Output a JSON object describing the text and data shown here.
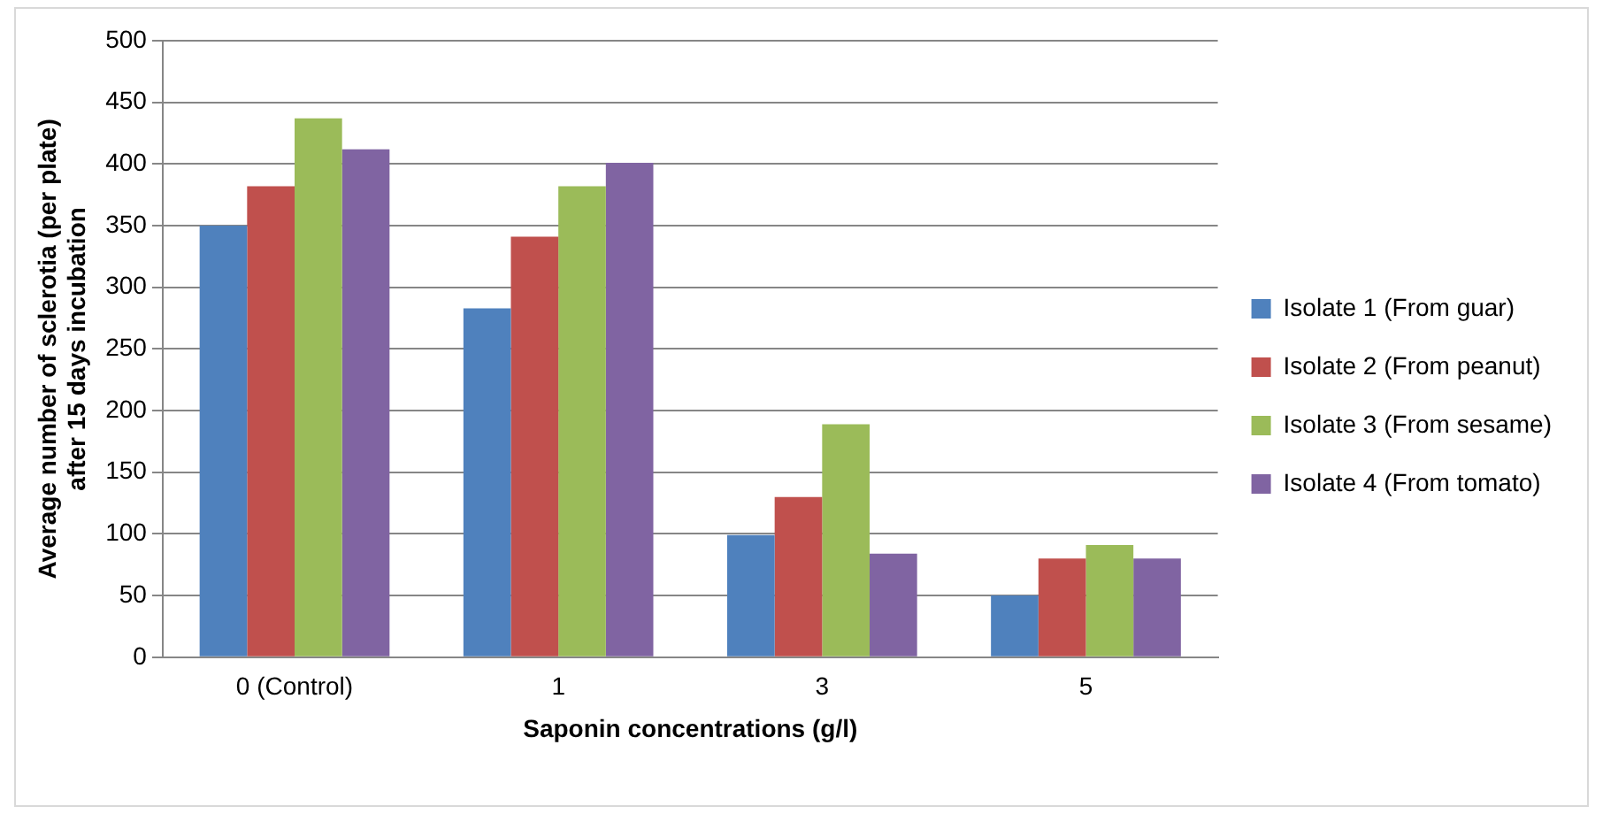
{
  "chart_data": {
    "type": "bar",
    "xlabel": "Saponin concentrations (g/l)",
    "ylabel": "Average number of sclerotia (per plate) after 15 days incubation",
    "categories": [
      "0 (Control)",
      "1",
      "3",
      "5"
    ],
    "series": [
      {
        "name": "Isolate 1 (From guar)",
        "color": "#4f81bd",
        "values": [
          350,
          283,
          99,
          50
        ]
      },
      {
        "name": "Isolate 2 (From peanut)",
        "color": "#c0504d",
        "values": [
          382,
          341,
          130,
          80
        ]
      },
      {
        "name": "Isolate 3 (From sesame)",
        "color": "#9bbb59",
        "values": [
          437,
          382,
          189,
          91
        ]
      },
      {
        "name": "Isolate 4 (From tomato)",
        "color": "#8064a2",
        "values": [
          412,
          401,
          84,
          80
        ]
      }
    ],
    "ylim": [
      0,
      500
    ],
    "yticks": [
      0,
      50,
      100,
      150,
      200,
      250,
      300,
      350,
      400,
      450,
      500
    ],
    "grid": "y",
    "legend": "right"
  }
}
